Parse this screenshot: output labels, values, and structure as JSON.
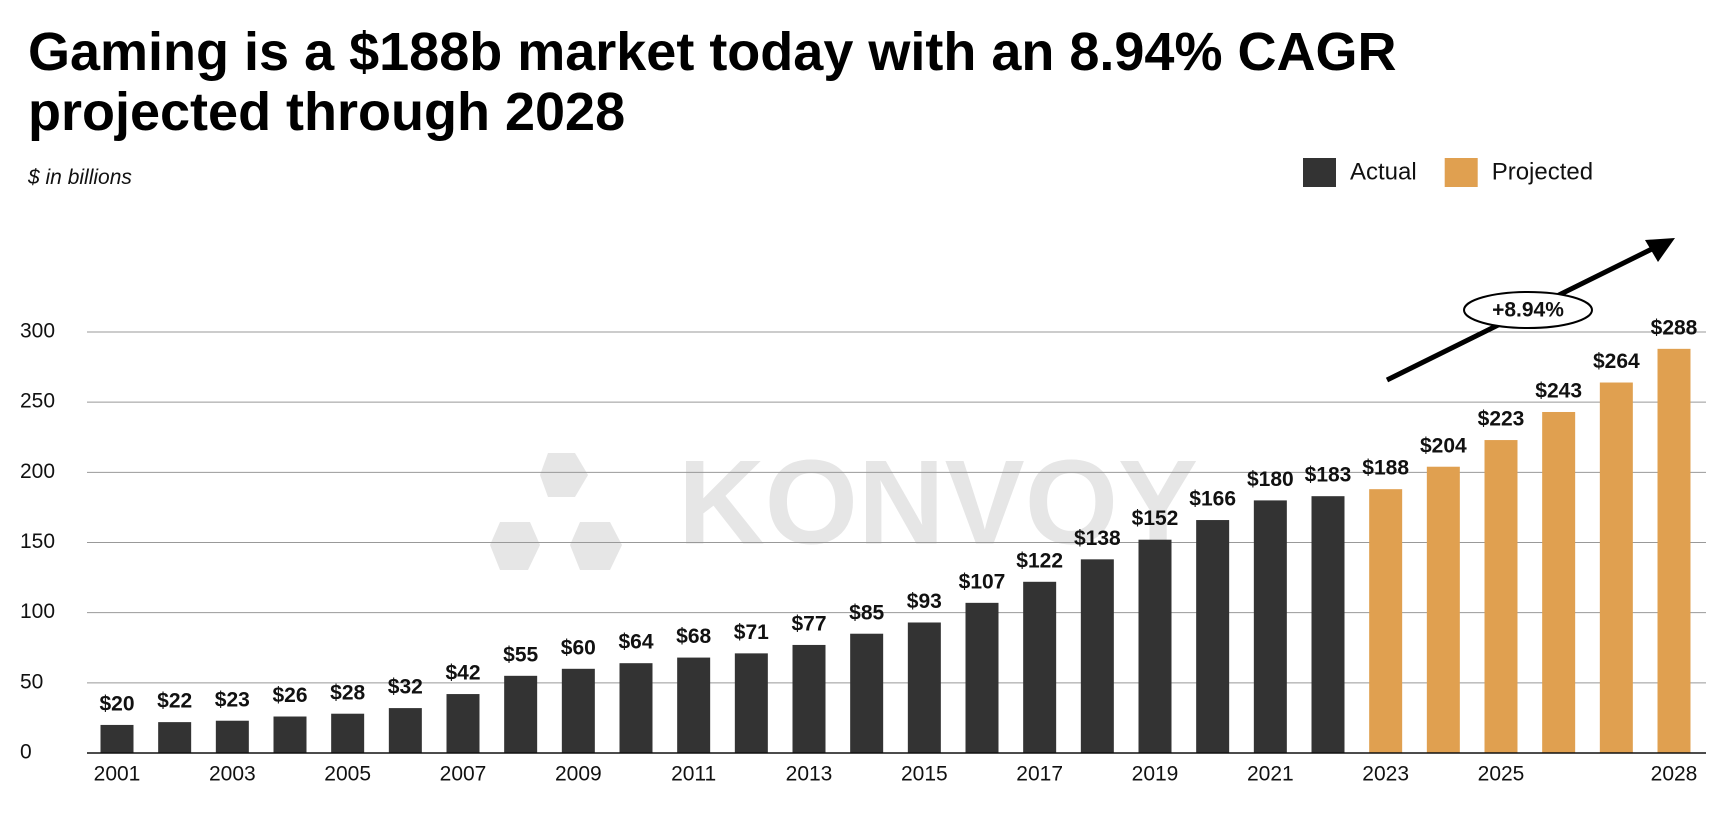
{
  "chart_data": {
    "type": "bar",
    "title": "Gaming is a $188b market today with an 8.94% CAGR projected through 2028",
    "subtitle": "$ in billions",
    "annotation": "+8.94%",
    "watermark": "KONVOY",
    "categories": [
      "2001",
      null,
      "2003",
      null,
      "2005",
      null,
      "2007",
      null,
      "2009",
      null,
      "2011",
      null,
      "2013",
      null,
      "2015",
      null,
      "2017",
      null,
      "2019",
      null,
      "2021",
      null,
      "2023",
      null,
      "2025",
      null,
      null,
      "2028"
    ],
    "series": [
      {
        "name": "Actual",
        "color": "#333333",
        "values": [
          20,
          22,
          23,
          26,
          28,
          32,
          42,
          55,
          60,
          64,
          68,
          71,
          77,
          85,
          93,
          107,
          122,
          138,
          152,
          166,
          180,
          183,
          null,
          null,
          null,
          null,
          null,
          null
        ],
        "value_labels": [
          "$20",
          "$22",
          "$23",
          "$26",
          "$28",
          "$32",
          "$42",
          "$55",
          "$60",
          "$64",
          "$68",
          "$71",
          "$77",
          "$85",
          "$93",
          "$107",
          "$122",
          "$138",
          "$152",
          "$166",
          "$180",
          "$183",
          null,
          null,
          null,
          null,
          null,
          null
        ]
      },
      {
        "name": "Projected",
        "color": "#e0a050",
        "values": [
          null,
          null,
          null,
          null,
          null,
          null,
          null,
          null,
          null,
          null,
          null,
          null,
          null,
          null,
          null,
          null,
          null,
          null,
          null,
          null,
          null,
          null,
          188,
          204,
          223,
          243,
          264,
          288
        ],
        "value_labels": [
          null,
          null,
          null,
          null,
          null,
          null,
          null,
          null,
          null,
          null,
          null,
          null,
          null,
          null,
          null,
          null,
          null,
          null,
          null,
          null,
          null,
          null,
          "$188",
          "$204",
          "$223",
          "$243",
          "$264",
          "$288"
        ]
      }
    ],
    "ylim": [
      0,
      300
    ],
    "yticks": [
      0,
      50,
      100,
      150,
      200,
      250,
      300
    ],
    "grid": true,
    "legend": "top-right"
  }
}
